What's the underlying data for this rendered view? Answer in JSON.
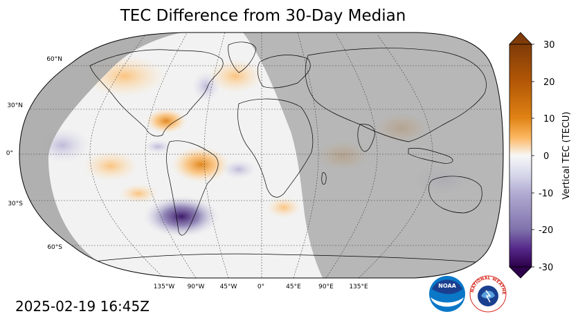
{
  "title": "TEC Difference from 30-Day Median",
  "timestamp": "2025-02-19 16:45Z",
  "map": {
    "projection": "Robinson",
    "lat_labels": [
      "60°N",
      "30°N",
      "0°",
      "30°S",
      "60°S"
    ],
    "lon_labels": [
      "135°W",
      "90°W",
      "45°W",
      "0°",
      "45°E",
      "90°E",
      "135°E"
    ],
    "night_shading_color": "#a9a9a9",
    "ocean_land_color": "#f2f2f2",
    "gridline_style": "dashed"
  },
  "colorbar": {
    "label": "Vertical TEC (TECU)",
    "tick_labels": [
      "30",
      "20",
      "10",
      "0",
      "-10",
      "-20",
      "-30"
    ],
    "min": -30,
    "max": 30,
    "colormap": "PuOr_r",
    "colors": {
      "max": "#7f3b08",
      "high": "#e08214",
      "mid_high": "#fdb863",
      "zero": "#f7f7f7",
      "mid_low": "#b2abd2",
      "low": "#542788",
      "min": "#2d004b"
    }
  },
  "logos": {
    "noaa": "NOAA",
    "nws": "NATIONAL WEATHER SERVICE"
  }
}
